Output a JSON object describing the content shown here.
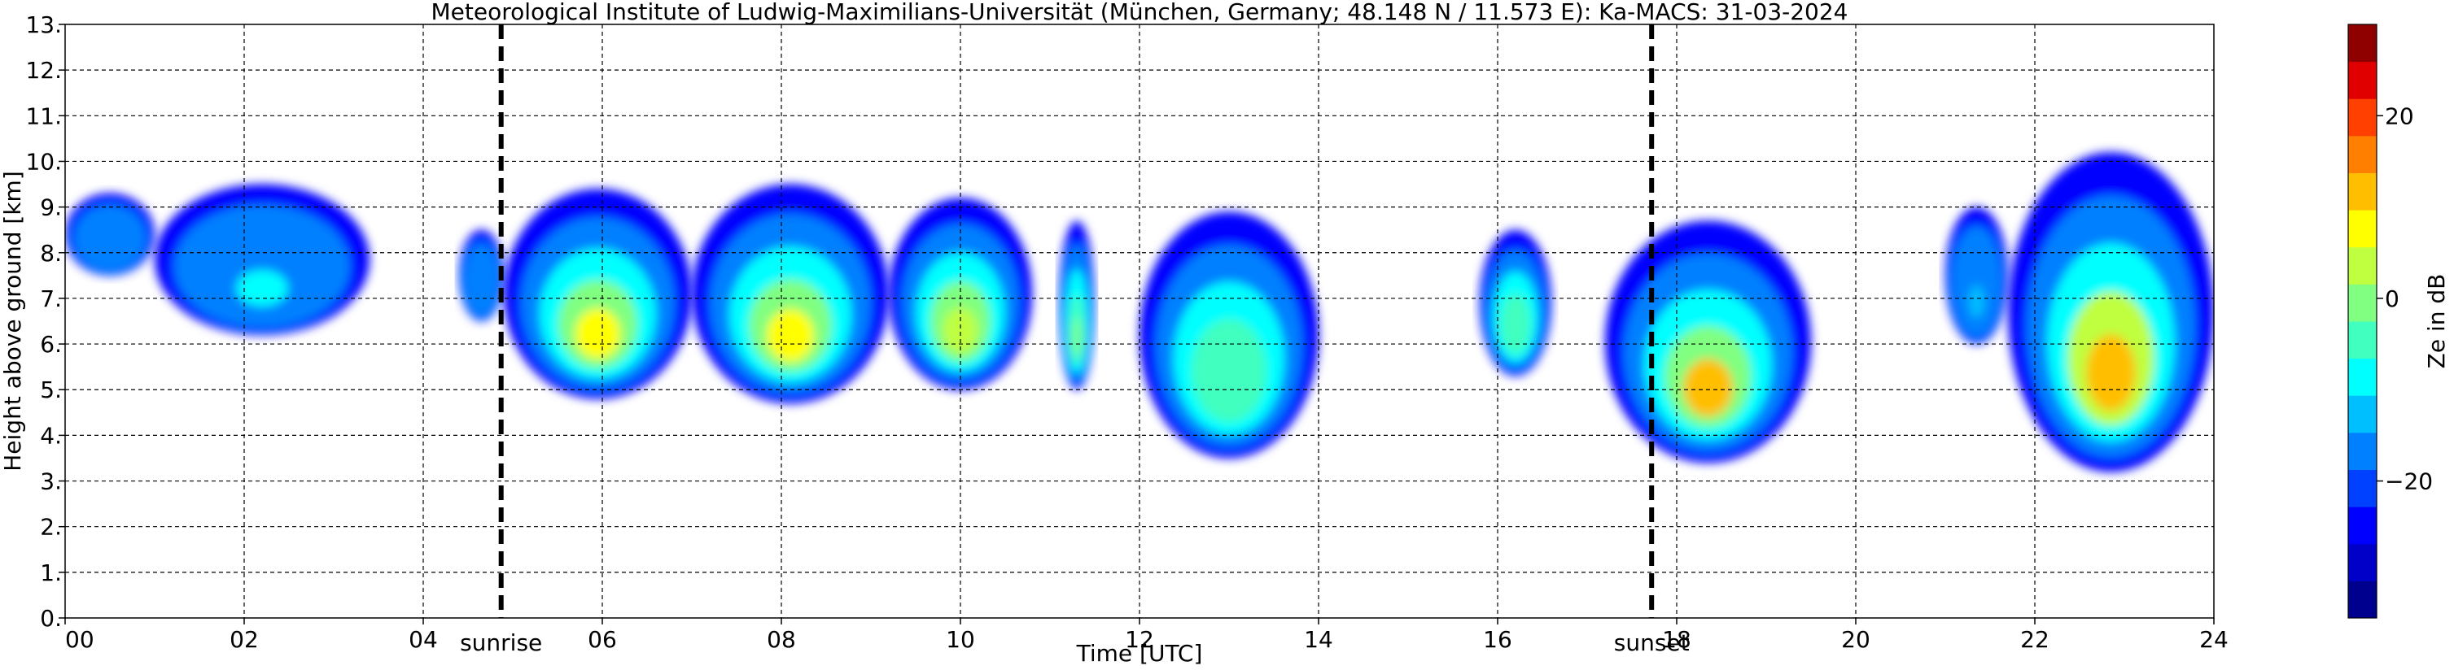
{
  "chart_data": {
    "type": "heatmap",
    "title": "Meteorological Institute of Ludwig-Maximilians-Universität (München, Germany; 48.148 N / 11.573 E):    Ka-MACS: 31-03-2024",
    "xlabel": "Time [UTC]",
    "ylabel": "Height above ground [km]",
    "xlim": [
      0,
      24
    ],
    "ylim": [
      0,
      13
    ],
    "x_ticks": [
      0,
      2,
      4,
      6,
      8,
      10,
      12,
      14,
      16,
      18,
      20,
      22,
      24
    ],
    "x_tick_labels": [
      "00",
      "02",
      "04",
      "06",
      "08",
      "10",
      "12",
      "14",
      "16",
      "18",
      "20",
      "22",
      "24"
    ],
    "y_ticks": [
      0,
      1,
      2,
      3,
      4,
      5,
      6,
      7,
      8,
      9,
      10,
      11,
      12,
      13
    ],
    "y_tick_labels": [
      "0.",
      "1.",
      "2.",
      "3.",
      "4.",
      "5.",
      "6.",
      "7.",
      "8.",
      "9.",
      "10.",
      "11.",
      "12.",
      "13."
    ],
    "grid": true,
    "colorbar": {
      "label": "Ze in dB",
      "range": [
        -35,
        30
      ],
      "ticks": [
        -20,
        0,
        20
      ],
      "tick_labels": [
        "−20",
        "0",
        "20"
      ],
      "colors": [
        "#00008f",
        "#0000c8",
        "#0000ff",
        "#0040ff",
        "#0080ff",
        "#00bfff",
        "#00ffff",
        "#40ffbf",
        "#80ff80",
        "#bfff40",
        "#ffff00",
        "#ffbf00",
        "#ff8000",
        "#ff4000",
        "#e00000",
        "#8f0000"
      ]
    },
    "reference_lines": [
      {
        "name": "sunrise",
        "x": 4.87
      },
      {
        "name": "sunset",
        "x": 17.72
      }
    ],
    "cloud_regions": [
      {
        "x_start": 0.0,
        "x_end": 1.0,
        "base_km": 7.5,
        "top_km": 9.3,
        "core_dbz": -15
      },
      {
        "x_start": 1.0,
        "x_end": 3.4,
        "base_km": 6.2,
        "top_km": 9.5,
        "core_dbz": -10
      },
      {
        "x_start": 4.4,
        "x_end": 4.9,
        "base_km": 6.5,
        "top_km": 8.5,
        "core_dbz": -15
      },
      {
        "x_start": 4.9,
        "x_end": 7.0,
        "base_km": 4.8,
        "top_km": 9.4,
        "core_dbz": 6
      },
      {
        "x_start": 7.0,
        "x_end": 9.2,
        "base_km": 4.7,
        "top_km": 9.5,
        "core_dbz": 6
      },
      {
        "x_start": 9.2,
        "x_end": 10.8,
        "base_km": 5.0,
        "top_km": 9.2,
        "core_dbz": 3
      },
      {
        "x_start": 11.1,
        "x_end": 11.5,
        "base_km": 5.0,
        "top_km": 8.7,
        "core_dbz": 0
      },
      {
        "x_start": 12.0,
        "x_end": 14.0,
        "base_km": 3.5,
        "top_km": 8.9,
        "core_dbz": -3
      },
      {
        "x_start": 15.8,
        "x_end": 16.6,
        "base_km": 5.3,
        "top_km": 8.5,
        "core_dbz": -5
      },
      {
        "x_start": 17.2,
        "x_end": 19.5,
        "base_km": 3.4,
        "top_km": 8.7,
        "core_dbz": 10
      },
      {
        "x_start": 21.0,
        "x_end": 21.7,
        "base_km": 6.0,
        "top_km": 9.0,
        "core_dbz": -12
      },
      {
        "x_start": 21.7,
        "x_end": 24.0,
        "base_km": 3.2,
        "top_km": 10.2,
        "core_dbz": 12
      }
    ]
  }
}
